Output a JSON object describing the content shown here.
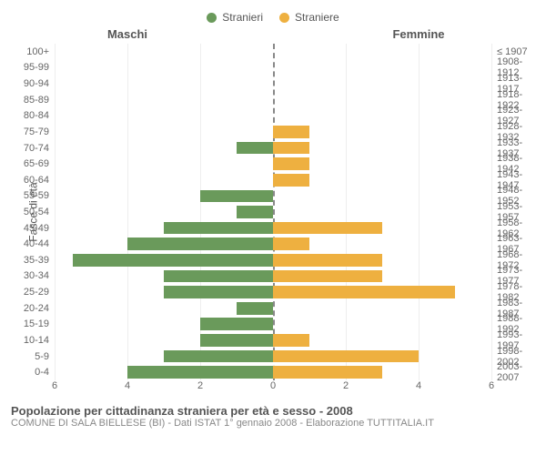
{
  "chart": {
    "type": "population-pyramid",
    "legend": [
      {
        "label": "Stranieri",
        "color": "#6a9a5b"
      },
      {
        "label": "Straniere",
        "color": "#eeb040"
      }
    ],
    "columns": {
      "left": "Maschi",
      "right": "Femmine"
    },
    "y_axis_label_left": "Fasce di età",
    "y_axis_label_right": "Anni di nascita",
    "xlim": 6,
    "x_ticks_left": [
      6,
      4,
      2,
      0
    ],
    "x_ticks_right": [
      0,
      2,
      4,
      6
    ],
    "row_height": 17.5,
    "bar_color_left": "#6a9a5b",
    "bar_color_right": "#eeb040",
    "grid_color": "#eeeeee",
    "center_line_color": "#888888",
    "background_color": "#ffffff",
    "label_fontsize": 11,
    "title_fontsize": 13,
    "rows": [
      {
        "age": "100+",
        "birth": "≤ 1907",
        "m": 0,
        "f": 0
      },
      {
        "age": "95-99",
        "birth": "1908-1912",
        "m": 0,
        "f": 0
      },
      {
        "age": "90-94",
        "birth": "1913-1917",
        "m": 0,
        "f": 0
      },
      {
        "age": "85-89",
        "birth": "1918-1922",
        "m": 0,
        "f": 0
      },
      {
        "age": "80-84",
        "birth": "1923-1927",
        "m": 0,
        "f": 0
      },
      {
        "age": "75-79",
        "birth": "1928-1932",
        "m": 0,
        "f": 1
      },
      {
        "age": "70-74",
        "birth": "1933-1937",
        "m": 1,
        "f": 1
      },
      {
        "age": "65-69",
        "birth": "1938-1942",
        "m": 0,
        "f": 1
      },
      {
        "age": "60-64",
        "birth": "1943-1947",
        "m": 0,
        "f": 1
      },
      {
        "age": "55-59",
        "birth": "1948-1952",
        "m": 2,
        "f": 0
      },
      {
        "age": "50-54",
        "birth": "1953-1957",
        "m": 1,
        "f": 0
      },
      {
        "age": "45-49",
        "birth": "1958-1962",
        "m": 3,
        "f": 3
      },
      {
        "age": "40-44",
        "birth": "1963-1967",
        "m": 4,
        "f": 1
      },
      {
        "age": "35-39",
        "birth": "1968-1972",
        "m": 5.5,
        "f": 3
      },
      {
        "age": "30-34",
        "birth": "1973-1977",
        "m": 3,
        "f": 3
      },
      {
        "age": "25-29",
        "birth": "1978-1982",
        "m": 3,
        "f": 5
      },
      {
        "age": "20-24",
        "birth": "1983-1987",
        "m": 1,
        "f": 0
      },
      {
        "age": "15-19",
        "birth": "1988-1992",
        "m": 2,
        "f": 0
      },
      {
        "age": "10-14",
        "birth": "1993-1997",
        "m": 2,
        "f": 1
      },
      {
        "age": "5-9",
        "birth": "1998-2002",
        "m": 3,
        "f": 4
      },
      {
        "age": "0-4",
        "birth": "2003-2007",
        "m": 4,
        "f": 3
      }
    ],
    "caption": {
      "line1": "Popolazione per cittadinanza straniera per età e sesso - 2008",
      "line2": "COMUNE DI SALA BIELLESE (BI) - Dati ISTAT 1° gennaio 2008 - Elaborazione TUTTITALIA.IT"
    }
  }
}
